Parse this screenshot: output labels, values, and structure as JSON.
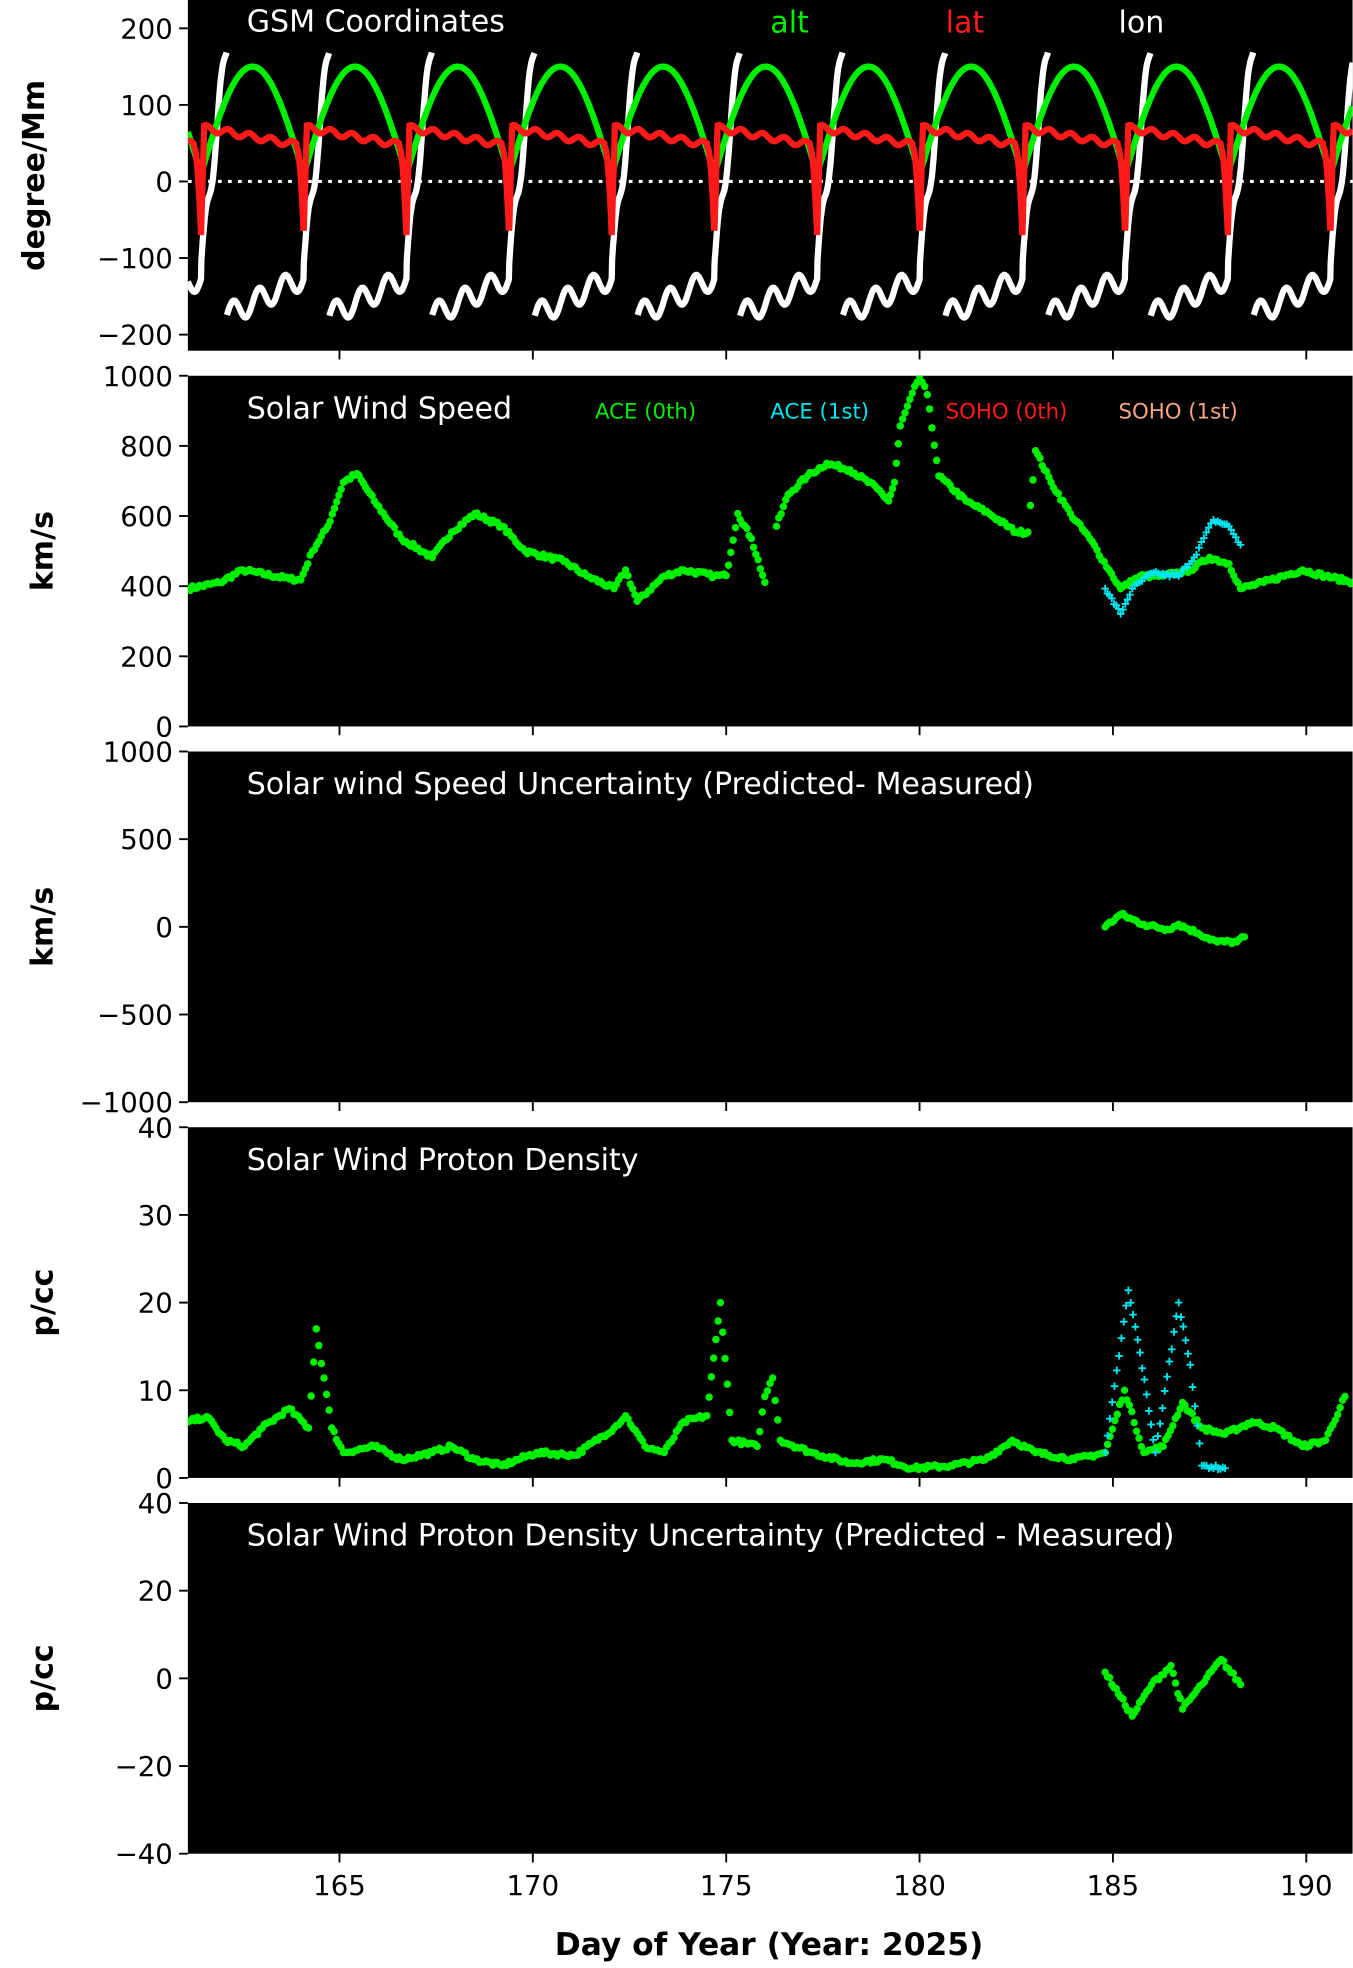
{
  "chart_data": {
    "type": "scatter",
    "xlabel": "Day of Year (Year: 2025)",
    "xlim": [
      161.08,
      191.2
    ],
    "xticks": [
      165,
      170,
      175,
      180,
      185,
      190
    ],
    "panels": [
      {
        "title": "GSM Coordinates",
        "ylabel": "degree/Mm",
        "ylim": [
          -221,
          237
        ],
        "yticks": [
          200,
          100,
          0,
          -100,
          -200
        ],
        "zero_line": true,
        "legend": [
          {
            "label": "alt",
            "color": "#00ee00"
          },
          {
            "label": "lat",
            "color": "#ff1a1a"
          },
          {
            "label": "lon",
            "color": "#ffffff"
          }
        ],
        "orbit": {
          "first_perigee_day": 161.42,
          "period_days": 2.655,
          "alt_apogee": 150,
          "alt_perigee": 10,
          "lat_max": 70,
          "lat_min": -70,
          "lon_range": [
            -180,
            180
          ]
        }
      },
      {
        "title": "Solar Wind Speed",
        "ylabel": "km/s",
        "ylim": [
          0,
          1000
        ],
        "yticks": [
          1000,
          800,
          600,
          400,
          200,
          0
        ],
        "legend": [
          {
            "label": "ACE (0th)",
            "color": "#00ee00"
          },
          {
            "label": "ACE (1st)",
            "color": "#00e5ee"
          },
          {
            "label": "SOHO (0th)",
            "color": "#ff1a1a"
          },
          {
            "label": "SOHO (1st)",
            "color": "#f4a582"
          }
        ],
        "series": [
          {
            "name": "ACE (0th)",
            "color": "#00ee00",
            "marker": "dot",
            "points": [
              [
                161.08,
                393
              ],
              [
                161.9,
                410
              ],
              [
                162.5,
                446
              ],
              [
                163.7,
                421
              ],
              [
                164.0,
                418
              ],
              [
                164.3,
                500
              ],
              [
                164.7,
                571
              ],
              [
                165.1,
                696
              ],
              [
                165.45,
                721
              ],
              [
                165.9,
                643
              ],
              [
                166.6,
                536
              ],
              [
                167.4,
                482
              ],
              [
                167.9,
                554
              ],
              [
                168.5,
                607
              ],
              [
                169.2,
                571
              ],
              [
                169.8,
                500
              ],
              [
                170.8,
                471
              ],
              [
                171.4,
                429
              ],
              [
                172.1,
                393
              ],
              [
                172.4,
                446
              ],
              [
                172.7,
                357
              ],
              [
                173.4,
                429
              ],
              [
                173.9,
                446
              ],
              [
                174.7,
                429
              ],
              [
                175.0,
                430
              ],
              [
                175.3,
                607
              ],
              [
                175.65,
                536
              ],
              [
                176.0,
                411
              ]
            ]
          },
          {
            "name": "ACE (0th)",
            "color": "#00ee00",
            "marker": "dot",
            "points": [
              [
                176.3,
                571
              ],
              [
                176.6,
                661
              ],
              [
                177.1,
                714
              ],
              [
                177.6,
                750
              ],
              [
                178.2,
                732
              ],
              [
                178.9,
                679
              ],
              [
                179.2,
                643
              ],
              [
                179.35,
                696
              ],
              [
                179.5,
                857
              ],
              [
                180.0,
                1000
              ],
              [
                180.2,
                946
              ],
              [
                180.5,
                714
              ],
              [
                181.2,
                643
              ],
              [
                181.8,
                607
              ],
              [
                182.5,
                554
              ],
              [
                182.8,
                554
              ],
              [
                183.0,
                786
              ],
              [
                183.4,
                696
              ],
              [
                183.9,
                607
              ],
              [
                184.4,
                536
              ],
              [
                184.9,
                446
              ],
              [
                185.2,
                393
              ],
              [
                185.7,
                429
              ],
              [
                186.3,
                429
              ],
              [
                187.0,
                446
              ],
              [
                187.5,
                482
              ],
              [
                188.0,
                464
              ],
              [
                188.3,
                393
              ],
              [
                188.9,
                411
              ],
              [
                189.9,
                446
              ],
              [
                190.5,
                429
              ],
              [
                191.2,
                411
              ]
            ]
          },
          {
            "name": "ACE (1st)",
            "color": "#00e5ee",
            "marker": "plus",
            "points": [
              [
                184.8,
                393
              ],
              [
                185.2,
                321
              ],
              [
                185.5,
                393
              ],
              [
                186.0,
                436
              ],
              [
                186.7,
                429
              ],
              [
                187.1,
                482
              ],
              [
                187.6,
                589
              ],
              [
                188.0,
                571
              ],
              [
                188.3,
                518
              ]
            ]
          }
        ]
      },
      {
        "title": "Solar wind Speed Uncertainty (Predicted- Measured)",
        "ylabel": "km/s",
        "ylim": [
          -1000,
          1000
        ],
        "yticks": [
          1000,
          500,
          0,
          -500,
          -1000
        ],
        "series": [
          {
            "name": "ACE (0th)",
            "color": "#00ee00",
            "marker": "dot",
            "points": [
              [
                184.8,
                0
              ],
              [
                185.2,
                71
              ],
              [
                185.8,
                14
              ],
              [
                186.4,
                -14
              ],
              [
                186.7,
                14
              ],
              [
                187.2,
                -36
              ],
              [
                187.7,
                -86
              ],
              [
                188.2,
                -86
              ],
              [
                188.4,
                -57
              ]
            ]
          }
        ]
      },
      {
        "title": "Solar Wind Proton Density",
        "ylabel": "p/cc",
        "ylim": [
          0,
          40
        ],
        "yticks": [
          40,
          30,
          20,
          10,
          0
        ],
        "series": [
          {
            "name": "ACE (0th)",
            "color": "#00ee00",
            "marker": "dot",
            "points": [
              [
                161.08,
                6.4
              ],
              [
                161.57,
                7.0
              ],
              [
                162.05,
                4.3
              ],
              [
                162.54,
                3.6
              ],
              [
                163.0,
                5.7
              ],
              [
                163.7,
                7.9
              ],
              [
                164.2,
                5.7
              ],
              [
                164.4,
                17
              ],
              [
                164.6,
                11.4
              ],
              [
                164.8,
                5.7
              ],
              [
                165.1,
                2.9
              ],
              [
                165.9,
                3.6
              ],
              [
                166.6,
                2.1
              ],
              [
                167.4,
                2.9
              ],
              [
                167.9,
                3.6
              ],
              [
                168.5,
                2.1
              ],
              [
                169.2,
                1.4
              ],
              [
                170.1,
                2.9
              ],
              [
                171.1,
                2.6
              ],
              [
                172.1,
                5.7
              ],
              [
                172.4,
                7.1
              ],
              [
                172.9,
                3.6
              ],
              [
                173.4,
                2.9
              ],
              [
                173.9,
                6.4
              ],
              [
                174.5,
                7.1
              ],
              [
                174.85,
                20
              ],
              [
                175.15,
                4.3
              ],
              [
                175.8,
                3.6
              ],
              [
                176.0,
                9.3
              ],
              [
                176.2,
                11.4
              ],
              [
                176.4,
                4.3
              ],
              [
                177.2,
                2.9
              ],
              [
                178.2,
                1.7
              ],
              [
                179.1,
                2.1
              ],
              [
                179.8,
                1.1
              ],
              [
                180.8,
                1.4
              ],
              [
                181.7,
                2.1
              ],
              [
                182.4,
                4.3
              ],
              [
                183.0,
                2.9
              ],
              [
                184.0,
                2.1
              ],
              [
                184.8,
                2.9
              ],
              [
                185.3,
                10
              ],
              [
                185.8,
                2.9
              ],
              [
                186.3,
                3.6
              ],
              [
                186.8,
                8.6
              ],
              [
                187.3,
                5.7
              ],
              [
                187.9,
                5.0
              ],
              [
                188.6,
                6.4
              ],
              [
                189.2,
                5.7
              ],
              [
                189.9,
                3.6
              ],
              [
                190.5,
                4.3
              ],
              [
                191.0,
                9.3
              ]
            ]
          },
          {
            "name": "ACE (1st)",
            "color": "#00e5ee",
            "marker": "plus",
            "points": [
              [
                184.8,
                2.9
              ],
              [
                185.4,
                21.4
              ],
              [
                185.7,
                14.3
              ],
              [
                186.1,
                2.9
              ],
              [
                186.7,
                20
              ],
              [
                187.0,
                12.9
              ],
              [
                187.3,
                1.4
              ],
              [
                187.9,
                1.1
              ]
            ]
          }
        ]
      },
      {
        "title": "Solar Wind Proton Density Uncertainty (Predicted - Measured)",
        "ylabel": "p/cc",
        "ylim": [
          -40,
          40
        ],
        "yticks": [
          40,
          20,
          0,
          -20,
          -40
        ],
        "series": [
          {
            "name": "ACE (0th)",
            "color": "#00ee00",
            "marker": "dot",
            "points": [
              [
                184.8,
                1.4
              ],
              [
                185.2,
                -4.3
              ],
              [
                185.5,
                -8.6
              ],
              [
                186.0,
                -1.4
              ],
              [
                186.5,
                2.9
              ],
              [
                186.8,
                -7.0
              ],
              [
                187.3,
                -1.4
              ],
              [
                187.8,
                4.3
              ],
              [
                188.3,
                -1.4
              ]
            ]
          }
        ]
      }
    ]
  }
}
